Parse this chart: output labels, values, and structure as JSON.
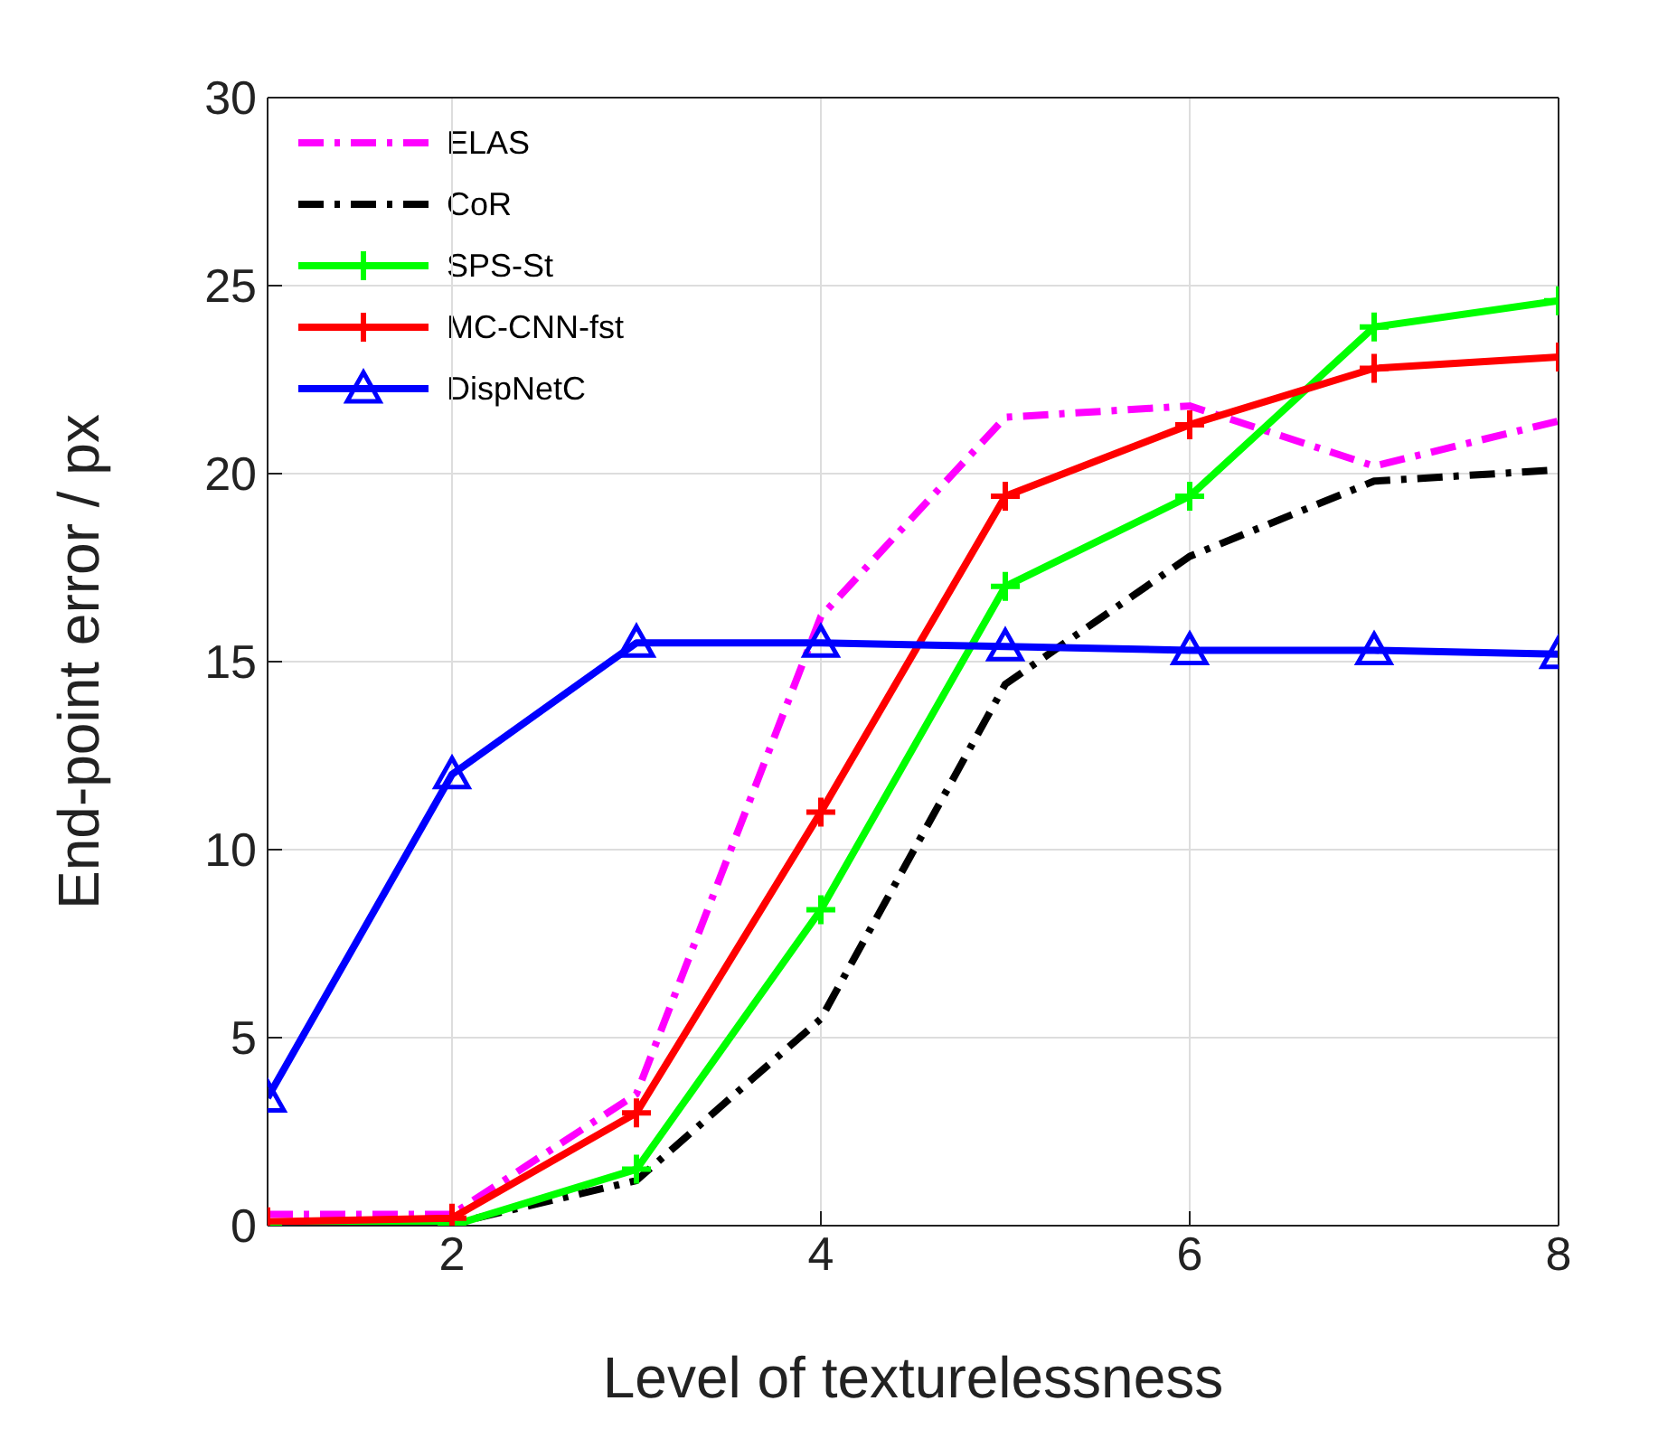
{
  "chart_data": {
    "type": "line",
    "xlabel": "Level of texturelessness",
    "ylabel": "End-point error / px",
    "x": [
      1,
      2,
      3,
      4,
      5,
      6,
      7,
      8
    ],
    "xlim": [
      1,
      8
    ],
    "xticks": [
      2,
      4,
      6,
      8
    ],
    "ylim": [
      0,
      30
    ],
    "yticks": [
      0,
      5,
      10,
      15,
      20,
      25,
      30
    ],
    "grid": true,
    "legend": "top left",
    "series": [
      {
        "name": "ELAS",
        "color": "#ff00ff",
        "line_style": "dashed",
        "marker": "none",
        "values": [
          0.3,
          0.3,
          3.5,
          16.2,
          21.5,
          21.8,
          20.2,
          21.4
        ]
      },
      {
        "name": "CoR",
        "color": "#000000",
        "line_style": "dashed",
        "marker": "none",
        "values": [
          0,
          0.05,
          1.2,
          5.5,
          14.4,
          17.8,
          19.8,
          20.1
        ]
      },
      {
        "name": "SPS-St",
        "color": "#00ff00",
        "line_style": "solid",
        "marker": "cross",
        "values": [
          0,
          0,
          1.5,
          8.4,
          17,
          19.4,
          23.9,
          24.6
        ]
      },
      {
        "name": "MC-CNN-fst",
        "color": "#ff0000",
        "line_style": "solid",
        "marker": "cross",
        "values": [
          0.1,
          0.2,
          3,
          11,
          19.4,
          21.3,
          22.8,
          23.1
        ]
      },
      {
        "name": "DispNetC",
        "color": "#0000ff",
        "line_style": "solid",
        "marker": "triangle",
        "values": [
          3.4,
          12,
          15.5,
          15.5,
          15.4,
          15.3,
          15.3,
          15.2
        ]
      }
    ]
  }
}
